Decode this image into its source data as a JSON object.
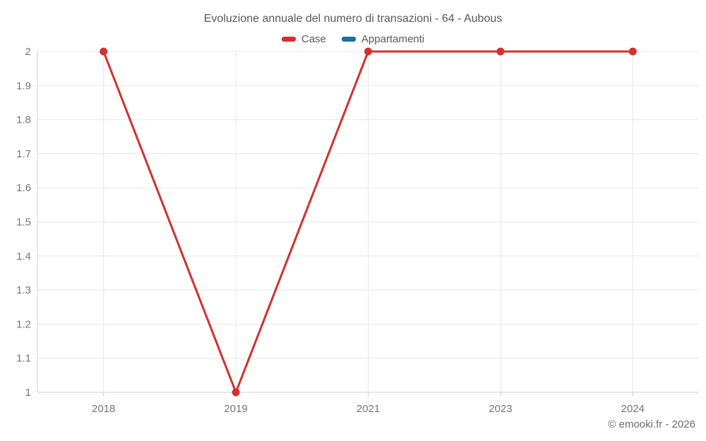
{
  "title": "Evoluzione annuale del numero di transazioni - 64 - Aubous",
  "legend": {
    "items": [
      {
        "label": "Case",
        "color": "#d2302f"
      },
      {
        "label": "Appartamenti",
        "color": "#1c6ea4"
      }
    ]
  },
  "copyright": "© emooki.fr - 2026",
  "chart_data": {
    "type": "line",
    "title": "Evoluzione annuale del numero di transazioni - 64 - Aubous",
    "categories": [
      "2018",
      "2019",
      "2021",
      "2023",
      "2024"
    ],
    "series": [
      {
        "name": "Case",
        "color": "#d2302f",
        "values": [
          2,
          1,
          2,
          2,
          2
        ]
      },
      {
        "name": "Appartamenti",
        "color": "#1c6ea4",
        "values": []
      }
    ],
    "xlabel": "",
    "ylabel": "",
    "ylim": [
      1,
      2
    ],
    "ytick_step": 0.1,
    "grid": true,
    "legend_position": "top",
    "marker": "circle",
    "colors": {
      "grid_line": "#e8e8e8",
      "axis_line": "#d2d2d2",
      "tick_mark": "#cfcfcf",
      "axis_label": "#757575"
    }
  }
}
